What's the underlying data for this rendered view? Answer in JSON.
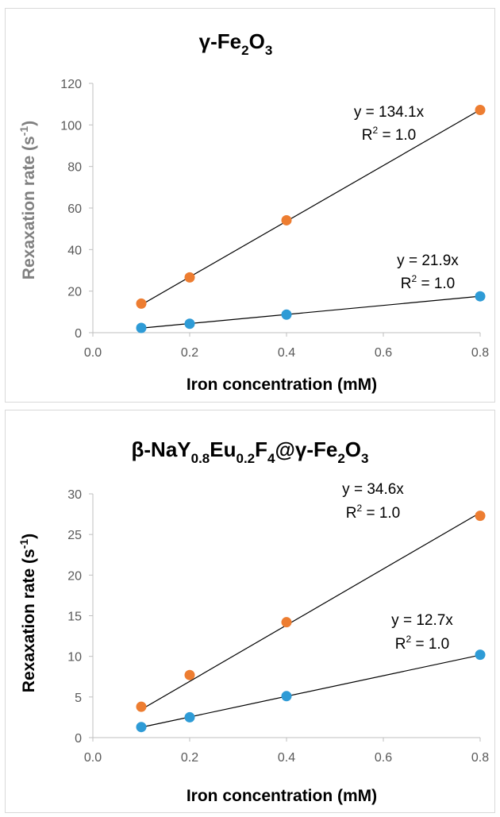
{
  "colors": {
    "orange": "#ED7D31",
    "blue": "#2E9BD6",
    "axis": "#bfbfbf",
    "tick_text": "#595959"
  },
  "chart_data": [
    {
      "type": "scatter",
      "title": {
        "parts": [
          {
            "t": "γ-Fe"
          },
          {
            "t": "2",
            "sub": true
          },
          {
            "t": "O"
          },
          {
            "t": "3",
            "sub": true
          }
        ]
      },
      "xlabel": "Iron concentration (mM)",
      "ylabel": {
        "parts": [
          {
            "t": "Rexaxation rate (s"
          },
          {
            "t": "-1",
            "sup": true
          },
          {
            "t": ")"
          }
        ]
      },
      "ylabel_color": "#808080",
      "xlim": [
        0,
        0.8
      ],
      "ylim": [
        0,
        120
      ],
      "xticks": [
        0.0,
        0.2,
        0.4,
        0.6,
        0.8
      ],
      "xtick_labels": [
        "0.0",
        "0.2",
        "0.4",
        "0.6",
        "0.8"
      ],
      "yticks": [
        0,
        20,
        40,
        60,
        80,
        100,
        120
      ],
      "ytick_labels": [
        "0",
        "20",
        "40",
        "60",
        "80",
        "100",
        "120"
      ],
      "grid": false,
      "legend": "none",
      "series": [
        {
          "color": "#ED7D31",
          "x": [
            0.1,
            0.2,
            0.4,
            0.8
          ],
          "y": [
            14,
            26.6,
            54.1,
            107.2
          ],
          "trendline": {
            "slope": 134.1
          },
          "equation": "y = 134.1x",
          "r2": [
            "R",
            "2",
            " = 1.0"
          ]
        },
        {
          "color": "#2E9BD6",
          "x": [
            0.1,
            0.2,
            0.4,
            0.8
          ],
          "y": [
            2.3,
            4.3,
            8.7,
            17.5
          ],
          "trendline": {
            "slope": 21.9
          },
          "equation": "y = 21.9x",
          "r2": [
            "R",
            "2",
            " = 1.0"
          ]
        }
      ]
    },
    {
      "type": "scatter",
      "title": {
        "parts": [
          {
            "t": "β-NaY"
          },
          {
            "t": "0.8",
            "sub": true
          },
          {
            "t": "Eu"
          },
          {
            "t": "0.2",
            "sub": true
          },
          {
            "t": "F"
          },
          {
            "t": "4",
            "sub": true
          },
          {
            "t": "@γ-Fe"
          },
          {
            "t": "2",
            "sub": true
          },
          {
            "t": "O"
          },
          {
            "t": "3",
            "sub": true
          }
        ]
      },
      "xlabel": "Iron concentration (mM)",
      "ylabel": {
        "parts": [
          {
            "t": "Rexaxation rate (s"
          },
          {
            "t": "-1",
            "sup": true
          },
          {
            "t": ")"
          }
        ]
      },
      "ylabel_color": "#000000",
      "xlim": [
        0,
        0.8
      ],
      "ylim": [
        0,
        30
      ],
      "xticks": [
        0.0,
        0.2,
        0.4,
        0.6,
        0.8
      ],
      "xtick_labels": [
        "0.0",
        "0.2",
        "0.4",
        "0.6",
        "0.8"
      ],
      "yticks": [
        0,
        5,
        10,
        15,
        20,
        25,
        30
      ],
      "ytick_labels": [
        "0",
        "5",
        "10",
        "15",
        "20",
        "25",
        "30"
      ],
      "grid": false,
      "legend": "none",
      "series": [
        {
          "color": "#ED7D31",
          "x": [
            0.1,
            0.2,
            0.4,
            0.8
          ],
          "y": [
            3.8,
            7.7,
            14.2,
            27.3
          ],
          "trendline": {
            "slope": 34.6
          },
          "equation": "y = 34.6x",
          "r2": [
            "R",
            "2",
            " = 1.0"
          ]
        },
        {
          "color": "#2E9BD6",
          "x": [
            0.1,
            0.2,
            0.4,
            0.8
          ],
          "y": [
            1.3,
            2.5,
            5.1,
            10.2
          ],
          "trendline": {
            "slope": 12.7
          },
          "equation": "y = 12.7x",
          "r2": [
            "R",
            "2",
            " = 1.0"
          ]
        }
      ]
    }
  ]
}
